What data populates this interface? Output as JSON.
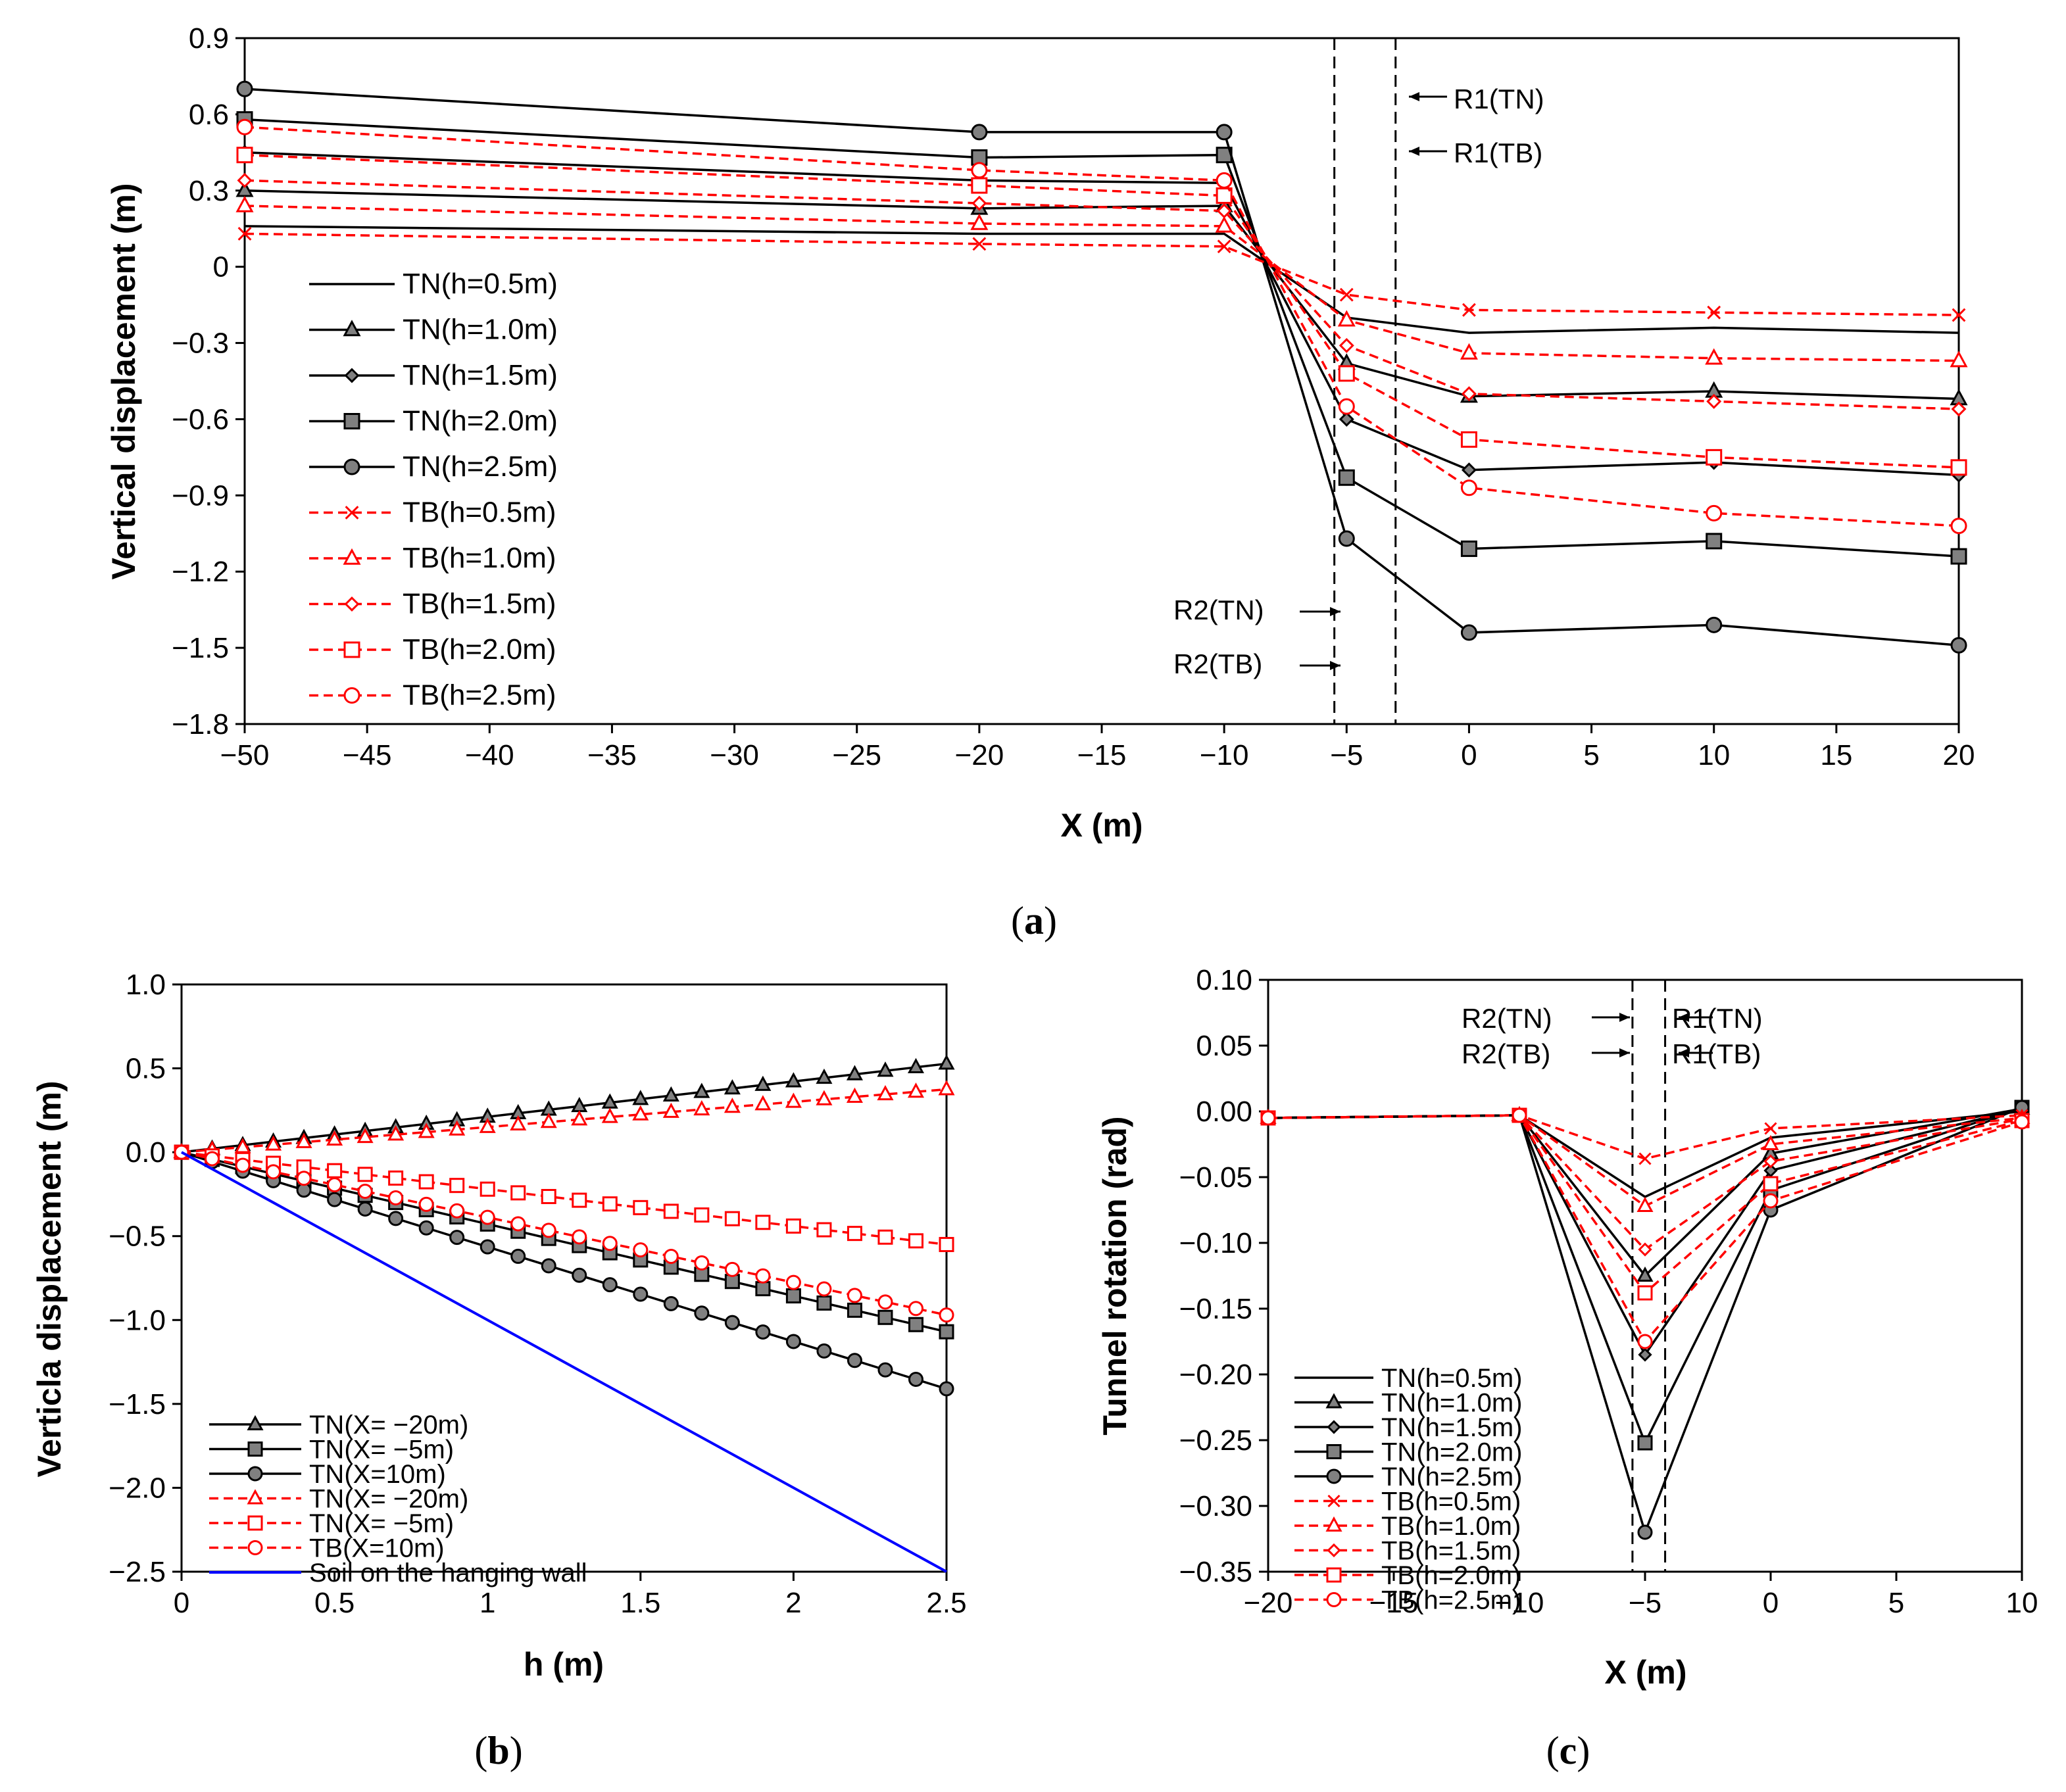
{
  "chart_data": [
    {
      "id": "a",
      "type": "line",
      "caption_letter": "a",
      "xlabel": "X (m)",
      "ylabel": "Vertical displacement (m)",
      "xlim": [
        -50,
        20
      ],
      "ylim": [
        -1.8,
        0.9
      ],
      "xticks": [
        "−50",
        "−45",
        "−40",
        "−35",
        "−30",
        "−25",
        "−20",
        "−15",
        "−10",
        "−5",
        "0",
        "5",
        "10",
        "15",
        "20"
      ],
      "yticks": [
        "0.9",
        "0.6",
        "0.3",
        "0",
        "−0.3",
        "−0.6",
        "−0.9",
        "−1.2",
        "−1.5",
        "−1.8"
      ],
      "x": [
        -50,
        -20,
        -10,
        -5,
        0,
        10,
        20
      ],
      "series": [
        {
          "name": "TN(h=0.5m)",
          "color": "#000000",
          "dash": false,
          "marker": "none",
          "values": [
            0.16,
            0.13,
            0.13,
            -0.2,
            -0.26,
            -0.24,
            -0.26
          ]
        },
        {
          "name": "TN(h=1.0m)",
          "color": "#000000",
          "dash": false,
          "marker": "triangle",
          "values": [
            0.3,
            0.23,
            0.24,
            -0.38,
            -0.51,
            -0.49,
            -0.52
          ]
        },
        {
          "name": "TN(h=1.5m)",
          "color": "#000000",
          "dash": false,
          "marker": "diamond",
          "values": [
            0.45,
            0.34,
            0.33,
            -0.6,
            -0.8,
            -0.77,
            -0.82
          ]
        },
        {
          "name": "TN(h=2.0m)",
          "color": "#000000",
          "dash": false,
          "marker": "square",
          "values": [
            0.58,
            0.43,
            0.44,
            -0.83,
            -1.11,
            -1.08,
            -1.14
          ]
        },
        {
          "name": "TN(h=2.5m)",
          "color": "#000000",
          "dash": false,
          "marker": "circle",
          "values": [
            0.7,
            0.53,
            0.53,
            -1.07,
            -1.44,
            -1.41,
            -1.49
          ]
        },
        {
          "name": "TB(h=0.5m)",
          "color": "#ff0000",
          "dash": true,
          "marker": "x",
          "values": [
            0.13,
            0.09,
            0.08,
            -0.11,
            -0.17,
            -0.18,
            -0.19
          ]
        },
        {
          "name": "TB(h=1.0m)",
          "color": "#ff0000",
          "dash": true,
          "marker": "triangle-open",
          "values": [
            0.24,
            0.17,
            0.16,
            -0.21,
            -0.34,
            -0.36,
            -0.37
          ]
        },
        {
          "name": "TB(h=1.5m)",
          "color": "#ff0000",
          "dash": true,
          "marker": "diamond-open",
          "values": [
            0.34,
            0.25,
            0.22,
            -0.31,
            -0.5,
            -0.53,
            -0.56
          ]
        },
        {
          "name": "TB(h=2.0m)",
          "color": "#ff0000",
          "dash": true,
          "marker": "square-open",
          "values": [
            0.44,
            0.32,
            0.28,
            -0.42,
            -0.68,
            -0.75,
            -0.79
          ]
        },
        {
          "name": "TB(h=2.5m)",
          "color": "#ff0000",
          "dash": true,
          "marker": "circle-open",
          "values": [
            0.55,
            0.38,
            0.34,
            -0.55,
            -0.87,
            -0.97,
            -1.02
          ]
        }
      ],
      "vlines": [
        -5.5,
        -3.0
      ],
      "annotations": {
        "r1_tn": "R1(TN)",
        "r1_tb": "R1(TB)",
        "r2_tn": "R2(TN)",
        "r2_tb": "R2(TB)"
      }
    },
    {
      "id": "b",
      "type": "line",
      "caption_letter": "b",
      "xlabel": "h (m)",
      "ylabel": "Verticla displacement (m)",
      "xlim": [
        0,
        2.5
      ],
      "ylim": [
        -2.5,
        1.0
      ],
      "xticks": [
        "0",
        "0.5",
        "1",
        "1.5",
        "2",
        "2.5"
      ],
      "yticks": [
        "1.0",
        "0.5",
        "0.0",
        "−0.5",
        "−1.0",
        "−1.5",
        "−2.0",
        "−2.5"
      ],
      "h_step": 0.1,
      "series": [
        {
          "name": "TN(X= −20m)",
          "color": "#000000",
          "dash": false,
          "marker": "triangle",
          "slope": 0.211
        },
        {
          "name": "TN(X= −5m)",
          "color": "#000000",
          "dash": false,
          "marker": "square",
          "slope": -0.428
        },
        {
          "name": "TN(X=10m)",
          "color": "#000000",
          "dash": false,
          "marker": "circle",
          "slope": -0.564
        },
        {
          "name": "TN(X= −20m)",
          "color": "#ff0000",
          "dash": true,
          "marker": "triangle-open",
          "slope": 0.15
        },
        {
          "name": "TN(X= −5m)",
          "color": "#ff0000",
          "dash": true,
          "marker": "square-open",
          "slope": -0.22
        },
        {
          "name": "TB(X=10m)",
          "color": "#ff0000",
          "dash": true,
          "marker": "circle-open",
          "slope": -0.388
        },
        {
          "name": "Soil on the hanging wall",
          "color": "#0000ff",
          "dash": false,
          "marker": "none",
          "slope": -1.0
        }
      ]
    },
    {
      "id": "c",
      "type": "line",
      "caption_letter": "c",
      "xlabel": "X (m)",
      "ylabel": "Tunnel rotation (rad)",
      "xlim": [
        -20,
        10
      ],
      "ylim": [
        -0.35,
        0.1
      ],
      "xticks": [
        "−20",
        "−15",
        "−10",
        "−5",
        "0",
        "5",
        "10"
      ],
      "yticks": [
        "0.10",
        "0.05",
        "0.00",
        "−0.05",
        "−0.10",
        "−0.15",
        "−0.20",
        "−0.25",
        "−0.30",
        "−0.35"
      ],
      "x": [
        -20,
        -10,
        -5,
        0,
        10
      ],
      "series": [
        {
          "name": "TN(h=0.5m)",
          "color": "#000000",
          "dash": false,
          "marker": "none",
          "values": [
            -0.005,
            -0.003,
            -0.065,
            -0.02,
            0.0
          ]
        },
        {
          "name": "TN(h=1.0m)",
          "color": "#000000",
          "dash": false,
          "marker": "triangle",
          "values": [
            -0.005,
            -0.003,
            -0.125,
            -0.032,
            0.002
          ]
        },
        {
          "name": "TN(h=1.5m)",
          "color": "#000000",
          "dash": false,
          "marker": "diamond",
          "values": [
            -0.005,
            -0.003,
            -0.185,
            -0.045,
            0.002
          ]
        },
        {
          "name": "TN(h=2.0m)",
          "color": "#000000",
          "dash": false,
          "marker": "square",
          "values": [
            -0.005,
            -0.003,
            -0.252,
            -0.06,
            0.003
          ]
        },
        {
          "name": "TN(h=2.5m)",
          "color": "#000000",
          "dash": false,
          "marker": "circle",
          "values": [
            -0.005,
            -0.003,
            -0.32,
            -0.075,
            0.003
          ]
        },
        {
          "name": "TB(h=0.5m)",
          "color": "#ff0000",
          "dash": true,
          "marker": "x",
          "values": [
            -0.005,
            -0.003,
            -0.036,
            -0.013,
            -0.003
          ]
        },
        {
          "name": "TB(h=1.0m)",
          "color": "#ff0000",
          "dash": true,
          "marker": "triangle-open",
          "values": [
            -0.005,
            -0.003,
            -0.072,
            -0.025,
            -0.005
          ]
        },
        {
          "name": "TB(h=1.5m)",
          "color": "#ff0000",
          "dash": true,
          "marker": "diamond-open",
          "values": [
            -0.005,
            -0.003,
            -0.105,
            -0.038,
            -0.006
          ]
        },
        {
          "name": "TB(h=2.0m)",
          "color": "#ff0000",
          "dash": true,
          "marker": "square-open",
          "values": [
            -0.005,
            -0.003,
            -0.138,
            -0.055,
            -0.007
          ]
        },
        {
          "name": "TB(h=2.5m)",
          "color": "#ff0000",
          "dash": true,
          "marker": "circle-open",
          "values": [
            -0.005,
            -0.003,
            -0.175,
            -0.068,
            -0.008
          ]
        }
      ],
      "vlines": [
        -5.5,
        -4.2
      ],
      "annotations": {
        "r1_tn": "R1(TN)",
        "r1_tb": "R1(TB)",
        "r2_tn": "R2(TN)",
        "r2_tb": "R2(TB)"
      }
    }
  ]
}
